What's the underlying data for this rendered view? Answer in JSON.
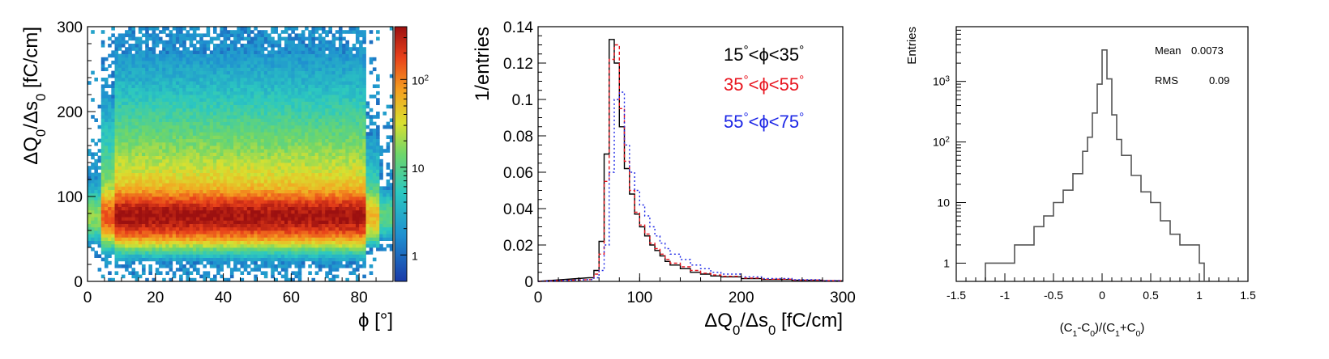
{
  "chart_data": [
    {
      "type": "heatmap",
      "xlabel": "ϕ [°]",
      "ylabel": "ΔQ0/Δs0 [fC/cm]",
      "xlim": [
        0,
        90
      ],
      "ylim": [
        0,
        300
      ],
      "xticks": [
        "0",
        "20",
        "40",
        "60",
        "80"
      ],
      "yticks": [
        "0",
        "100",
        "200",
        "300"
      ],
      "colorbar": {
        "scale": "log",
        "range": [
          0.5,
          400
        ],
        "ticks": [
          "1",
          "10",
          "10^2"
        ]
      },
      "description_values": {
        "band_center_y": 75,
        "band_x_range": [
          5,
          80
        ],
        "band_peak_count": 300
      }
    },
    {
      "type": "line",
      "xlabel": "ΔQ0/Δs0 [fC/cm]",
      "ylabel": "1/entries",
      "xlim": [
        0,
        300
      ],
      "ylim": [
        0,
        0.14
      ],
      "xticks": [
        "0",
        "100",
        "200",
        "300"
      ],
      "yticks": [
        "0",
        "0.02",
        "0.04",
        "0.06",
        "0.08",
        "0.1",
        "0.12",
        "0.14"
      ],
      "legend_position": "top-right",
      "x": [
        50,
        55,
        60,
        65,
        70,
        75,
        80,
        85,
        90,
        95,
        100,
        105,
        110,
        115,
        120,
        125,
        130,
        140,
        150,
        160,
        170,
        180,
        200,
        220,
        250,
        280
      ],
      "series": [
        {
          "name": "15°<ϕ<35°",
          "color": "#000000",
          "values": [
            0.002,
            0.006,
            0.022,
            0.07,
            0.133,
            0.12,
            0.085,
            0.062,
            0.048,
            0.037,
            0.03,
            0.025,
            0.02,
            0.017,
            0.014,
            0.011,
            0.009,
            0.007,
            0.005,
            0.004,
            0.003,
            0.0025,
            0.0015,
            0.001,
            0.0006,
            0.0003
          ]
        },
        {
          "name": "35°<ϕ<55°",
          "color": "#e8141e",
          "values": [
            0.001,
            0.004,
            0.015,
            0.055,
            0.122,
            0.13,
            0.095,
            0.066,
            0.05,
            0.038,
            0.031,
            0.026,
            0.021,
            0.018,
            0.015,
            0.012,
            0.01,
            0.008,
            0.006,
            0.0045,
            0.0035,
            0.0028,
            0.0018,
            0.0012,
            0.0007,
            0.0004
          ]
        },
        {
          "name": "55°<ϕ<75°",
          "color": "#1e28e6",
          "values": [
            0.001,
            0.002,
            0.006,
            0.02,
            0.06,
            0.1,
            0.104,
            0.075,
            0.06,
            0.05,
            0.042,
            0.036,
            0.03,
            0.025,
            0.021,
            0.018,
            0.015,
            0.012,
            0.009,
            0.007,
            0.005,
            0.004,
            0.0025,
            0.0016,
            0.0009,
            0.0005
          ]
        }
      ]
    },
    {
      "type": "line",
      "xlabel": "(C1-C0)/(C1+C0)",
      "ylabel": "Entries",
      "xlim": [
        -1.5,
        1.5
      ],
      "ylim_log": [
        0.5,
        8000
      ],
      "scale_y": "log",
      "xticks": [
        "-1.5",
        "-1",
        "-0.5",
        "0",
        "0.5",
        "1",
        "1.5"
      ],
      "yticks": [
        "1",
        "10",
        "10^2",
        "10^3"
      ],
      "stats": {
        "mean_label": "Mean",
        "mean": "0.0073",
        "rms_label": "RMS",
        "rms": "0.09"
      },
      "x": [
        -1.2,
        -1.0,
        -0.9,
        -0.8,
        -0.7,
        -0.6,
        -0.5,
        -0.4,
        -0.3,
        -0.2,
        -0.15,
        -0.1,
        -0.05,
        0.0,
        0.05,
        0.1,
        0.15,
        0.2,
        0.3,
        0.4,
        0.5,
        0.6,
        0.7,
        0.8,
        0.9,
        1.0
      ],
      "values": [
        1,
        1,
        2,
        2,
        4,
        6,
        10,
        16,
        30,
        70,
        120,
        300,
        900,
        3300,
        1100,
        280,
        110,
        60,
        28,
        15,
        10,
        5,
        3,
        2,
        2,
        1
      ]
    }
  ]
}
